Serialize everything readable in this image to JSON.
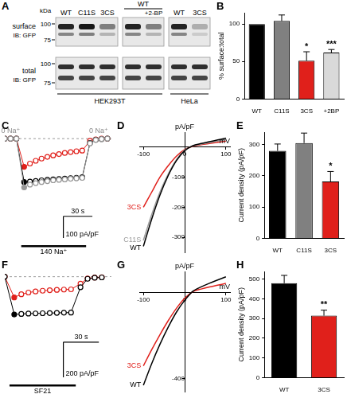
{
  "blot": {
    "panel_label": "A",
    "unit": "kDa",
    "markers": [
      100,
      75
    ],
    "rows": [
      {
        "label": "surface",
        "probe": "IB: GFP"
      },
      {
        "label": "total",
        "probe": "IB: GFP"
      }
    ],
    "cell_lines": [
      {
        "name": "HEK293T",
        "groups": [
          {
            "lanes": [
              "WT",
              "C11S",
              "3CS"
            ]
          },
          {
            "header": "WT",
            "lanes": [
              null,
              "+2-BP"
            ]
          }
        ]
      },
      {
        "name": "HeLa",
        "groups": [
          {
            "lanes": [
              "WT",
              "3CS"
            ]
          }
        ]
      }
    ]
  },
  "chart_data": [
    {
      "panel_label": "B",
      "type": "bar",
      "categories": [
        "WT",
        "C11S",
        "3CS",
        "+2BP"
      ],
      "values": [
        100,
        104,
        51,
        62
      ],
      "errors": [
        null,
        8,
        12,
        4
      ],
      "significance": [
        null,
        null,
        "*",
        "***"
      ],
      "colors": [
        "#000000",
        "#808080",
        "#e0201b",
        "#d9d9d9"
      ],
      "y_label": "% surface:total",
      "ylim": [
        0,
        115
      ],
      "yticks": [
        0,
        50,
        100
      ],
      "grid": false
    },
    {
      "panel_label": "C",
      "type": "scatter",
      "marker": "circle",
      "line_style": "solid",
      "tick_labels": false,
      "x": [
        0,
        6,
        12,
        20,
        26,
        32,
        38,
        44,
        50,
        56,
        62,
        68,
        74,
        80,
        88,
        94,
        100,
        106
      ],
      "series": [
        {
          "color": "#999999",
          "values": [
            0,
            0,
            0,
            -225,
            -212,
            -205,
            -200,
            -196,
            -192,
            -190,
            -188,
            -185,
            -183,
            -181,
            -22,
            -6,
            -2,
            0
          ]
        },
        {
          "color": "#000000",
          "values": [
            0,
            0,
            0,
            -200,
            -198,
            -195,
            -192,
            -190,
            -188,
            -186,
            -184,
            -182,
            -180,
            -178,
            -20,
            -5,
            -2,
            0
          ]
        },
        {
          "color": "#e0201b",
          "values": [
            0,
            0,
            0,
            -130,
            -115,
            -102,
            -92,
            -84,
            -77,
            -71,
            -66,
            -62,
            -58,
            -55,
            -10,
            -3,
            0,
            0
          ]
        }
      ],
      "xlim": [
        0,
        110
      ],
      "ylim": [
        -480,
        30
      ],
      "reference_line": 0,
      "solution": {
        "label": "140 Na⁺",
        "start": 17,
        "end": 84
      },
      "annotations": [
        {
          "text": "0 Na⁺",
          "x": 6
        },
        {
          "text": "0 Na⁺",
          "x": 97
        }
      ],
      "scale_bars": [
        {
          "axis": "x",
          "value": 30,
          "label": "30 s"
        },
        {
          "axis": "y",
          "value": 100,
          "label": "100 pA/pF"
        }
      ]
    },
    {
      "panel_label": "D",
      "type": "line",
      "x": [
        -100,
        -80,
        -60,
        -40,
        -20,
        0,
        20,
        40,
        60,
        80,
        100
      ],
      "series": [
        {
          "name": "WT",
          "color": "#000000",
          "values": [
            -330,
            -240,
            -160,
            -95,
            -45,
            -12,
            5,
            12,
            18,
            24,
            30
          ]
        },
        {
          "name": "C11S",
          "color": "#999999",
          "values": [
            -310,
            -225,
            -150,
            -90,
            -42,
            -10,
            4,
            10,
            15,
            20,
            25
          ]
        },
        {
          "name": "3CS",
          "color": "#e0201b",
          "values": [
            -200,
            -150,
            -100,
            -62,
            -30,
            -8,
            3,
            8,
            12,
            16,
            20
          ]
        }
      ],
      "xlim": [
        -110,
        110
      ],
      "xticks": [
        -100,
        0,
        100
      ],
      "ylim": [
        -350,
        50
      ],
      "yticks": [
        -300,
        -200,
        -100
      ],
      "origin": {
        "x": 0,
        "y": 0
      },
      "x_label": "mV",
      "y_label": "pA/pF",
      "grid": false
    },
    {
      "panel_label": "E",
      "type": "bar",
      "categories": [
        "WT",
        "C11S",
        "3CS"
      ],
      "values": [
        280,
        305,
        182
      ],
      "errors": [
        22,
        32,
        32
      ],
      "significance": [
        null,
        null,
        "*"
      ],
      "colors": [
        "#000000",
        "#808080",
        "#e0201b"
      ],
      "y_label": "Current density (pA/pF)",
      "ylim": [
        0,
        340
      ],
      "yticks": [
        0,
        100,
        200,
        300
      ],
      "grid": false
    },
    {
      "panel_label": "F",
      "type": "scatter",
      "marker": "circle",
      "line_style": "solid",
      "tick_labels": false,
      "x": [
        0,
        8,
        14,
        20,
        26,
        32,
        38,
        44,
        50,
        56,
        64,
        70,
        76,
        82
      ],
      "series": [
        {
          "color": "#000000",
          "values": [
            0,
            -215,
            -212,
            -210,
            -209,
            -208,
            -207,
            -206,
            -205,
            -204,
            -60,
            -12,
            -6,
            -4
          ]
        },
        {
          "color": "#e0201b",
          "values": [
            0,
            -118,
            -100,
            -90,
            -84,
            -80,
            -77,
            -75,
            -73,
            -72,
            -40,
            -10,
            -5,
            -3
          ]
        }
      ],
      "xlim": [
        0,
        90
      ],
      "ylim": [
        -600,
        30
      ],
      "reference_line": 0,
      "solution": {
        "label": "SF21",
        "start": 4,
        "end": 60
      },
      "scale_bars": [
        {
          "axis": "x",
          "value": 30,
          "label": "30 s"
        },
        {
          "axis": "y",
          "value": 200,
          "label": "200 pA/pF"
        }
      ]
    },
    {
      "panel_label": "G",
      "type": "line",
      "x": [
        -100,
        -80,
        -60,
        -40,
        -20,
        0,
        20,
        40,
        60,
        80,
        100
      ],
      "series": [
        {
          "name": "WT",
          "color": "#000000",
          "values": [
            -430,
            -330,
            -240,
            -160,
            -90,
            -35,
            8,
            28,
            45,
            60,
            75
          ]
        },
        {
          "name": "3CS",
          "color": "#e0201b",
          "values": [
            -340,
            -265,
            -195,
            -130,
            -72,
            -25,
            6,
            18,
            28,
            36,
            44
          ]
        }
      ],
      "xlim": [
        -110,
        110
      ],
      "xticks": [
        -100,
        0,
        100
      ],
      "ylim": [
        -460,
        100
      ],
      "yticks": [
        -400
      ],
      "origin": {
        "x": 0,
        "y": 0
      },
      "x_label": "mV",
      "y_label": "pA/pF",
      "grid": false
    },
    {
      "panel_label": "H",
      "type": "bar",
      "categories": [
        "WT",
        "3CS"
      ],
      "values": [
        480,
        315
      ],
      "errors": [
        40,
        28
      ],
      "significance": [
        null,
        "**"
      ],
      "colors": [
        "#000000",
        "#e0201b"
      ],
      "y_label": "Current density (pA/pF)",
      "ylim": [
        0,
        540
      ],
      "yticks": [
        0,
        100,
        200,
        300,
        400,
        500
      ],
      "grid": false
    }
  ]
}
